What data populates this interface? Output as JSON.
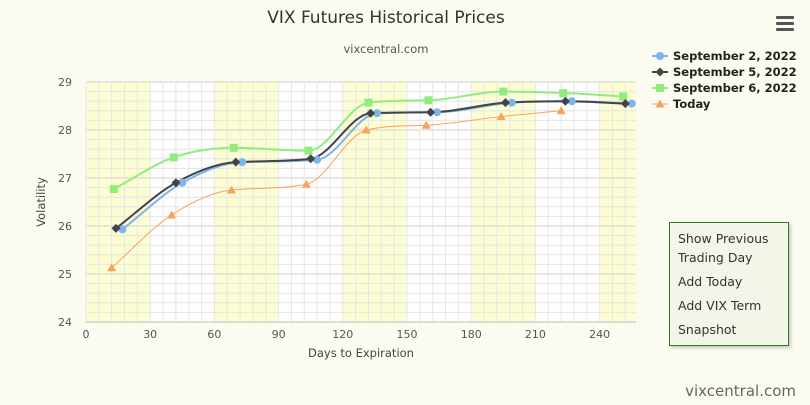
{
  "title": "VIX Futures Historical Prices",
  "subtitle": "vixcentral.com",
  "credit": "vixcentral.com",
  "menu": {
    "icon": "hamburger-icon",
    "items": [
      "Show Previous Trading Day",
      "Add Today",
      "Add VIX Term",
      "Snapshot"
    ]
  },
  "chart_data": {
    "type": "line",
    "xlabel": "Days to Expiration",
    "ylabel": "Volatility",
    "xlim": [
      0,
      257
    ],
    "ylim": [
      24,
      29
    ],
    "xticks": [
      0,
      30,
      60,
      90,
      120,
      150,
      180,
      210,
      240
    ],
    "yticks": [
      24,
      25,
      26,
      27,
      28,
      29
    ],
    "shaded_bands": [
      [
        0,
        30
      ],
      [
        60,
        90
      ],
      [
        120,
        150
      ],
      [
        180,
        210
      ],
      [
        240,
        257
      ]
    ],
    "legend_position": "top-right",
    "series": [
      {
        "name": "September 2, 2022",
        "color": "#7cb5ec",
        "marker": "circle",
        "x": [
          17,
          45,
          73,
          108,
          136,
          164,
          199,
          227,
          255
        ],
        "y": [
          25.93,
          26.9,
          27.33,
          27.38,
          28.35,
          28.37,
          28.57,
          28.6,
          28.55
        ]
      },
      {
        "name": "September 5, 2022",
        "color": "#434348",
        "marker": "diamond",
        "x": [
          14,
          42,
          70,
          105,
          133,
          161,
          196,
          224,
          252
        ],
        "y": [
          25.95,
          26.9,
          27.33,
          27.4,
          28.35,
          28.37,
          28.57,
          28.6,
          28.55
        ]
      },
      {
        "name": "September 6, 2022",
        "color": "#90ed7d",
        "marker": "square",
        "x": [
          13,
          41,
          69,
          104,
          132,
          160,
          195,
          223,
          251
        ],
        "y": [
          26.77,
          27.43,
          27.63,
          27.57,
          28.57,
          28.62,
          28.8,
          28.77,
          28.7
        ]
      },
      {
        "name": "Today",
        "color": "#f7a35c",
        "marker": "triangle",
        "x": [
          12,
          40,
          68,
          103,
          131,
          159,
          194,
          222
        ],
        "y": [
          25.13,
          26.23,
          26.75,
          26.87,
          28.0,
          28.1,
          28.28,
          28.4
        ]
      }
    ]
  }
}
